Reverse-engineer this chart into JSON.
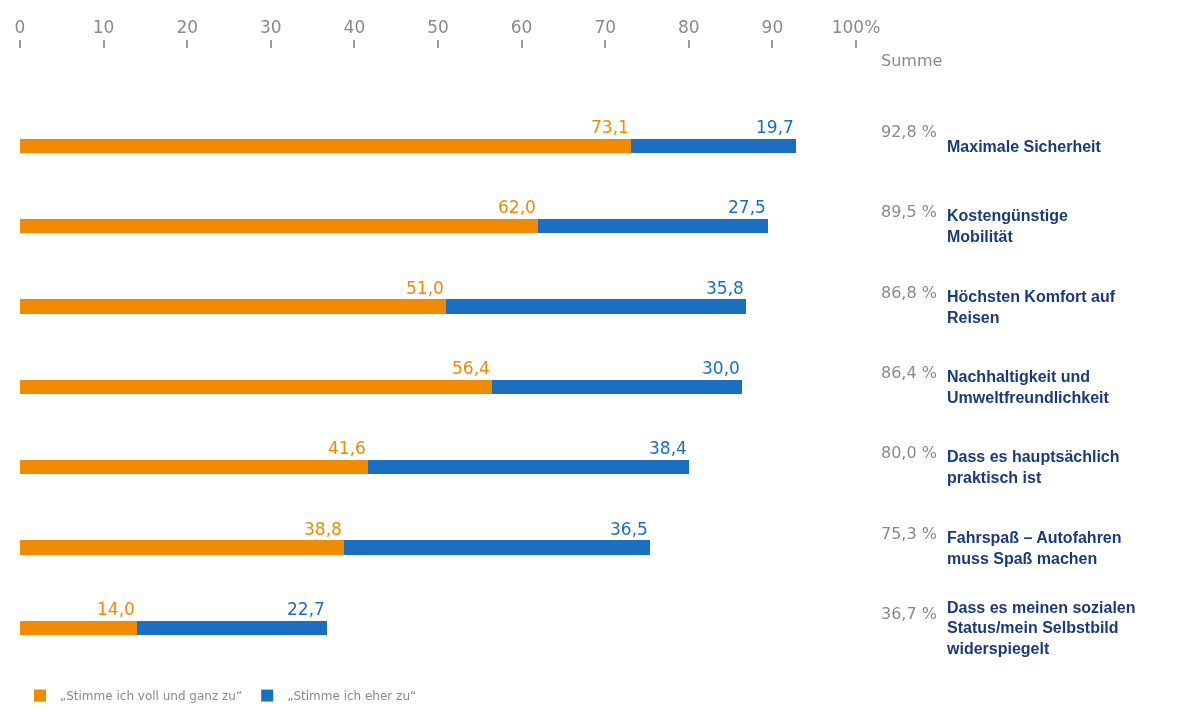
{
  "chart_data": {
    "type": "bar",
    "orientation": "horizontal",
    "stacked": true,
    "categories": [
      "Maximale Sicherheit",
      "Kostengünstige Mobilität",
      "Höchsten Komfort auf Reisen",
      "Nachhaltigkeit und Umweltfreundlichkeit",
      "Dass es hauptsächlich praktisch ist",
      "Fahrspaß – Autofahren muss Spaß machen",
      "Dass es meinen sozialen Status/mein Selbstbild widerspiegelt"
    ],
    "series": [
      {
        "name": "„Stimme ich voll und ganz zu“",
        "color": "#f08a00",
        "values": [
          73.1,
          62.0,
          51.0,
          56.4,
          41.6,
          38.8,
          14.0
        ],
        "value_labels": [
          "73,1",
          "62,0",
          "51,0",
          "56,4",
          "41,6",
          "38,8",
          "14,0"
        ]
      },
      {
        "name": "„Stimme ich eher zu“",
        "color": "#1a6fc0",
        "values": [
          19.7,
          27.5,
          35.8,
          30.0,
          38.4,
          36.5,
          22.7
        ],
        "value_labels": [
          "19,7",
          "27,5",
          "35,8",
          "30,0",
          "38,4",
          "36,5",
          "22,7"
        ]
      }
    ],
    "annotations": [
      "Summe",
      "92,8 %",
      "89,5 %",
      "86,8 %",
      "86,4 %",
      "80,0 %",
      "75,3 %",
      "36,7 %"
    ],
    "xlim": [
      0,
      100
    ],
    "xticks": [
      0,
      10,
      20,
      30,
      40,
      50,
      60,
      70,
      80,
      90,
      {
        "value": 100,
        "label": "100%"
      }
    ],
    "grid": false,
    "legend": "bottom left"
  }
}
